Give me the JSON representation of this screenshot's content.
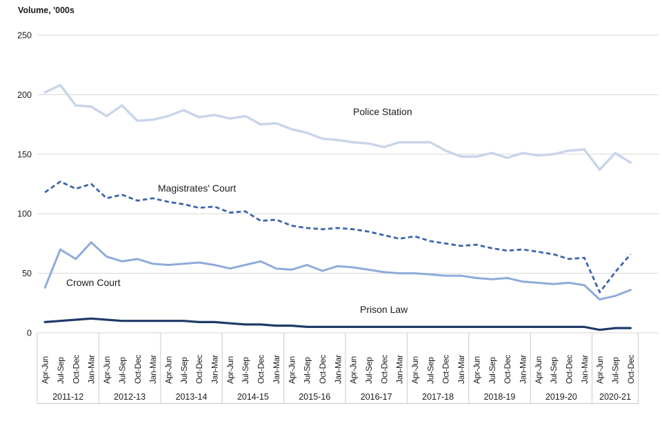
{
  "page": {
    "background": "#ffffff"
  },
  "chart_data": {
    "type": "line",
    "title": "Volume, '000s",
    "ylabel": "Volume, '000s",
    "ylim": [
      0,
      250
    ],
    "y_ticks": [
      250,
      200,
      150,
      100,
      50,
      0
    ],
    "grid": "horizontal",
    "legend": "inline-labels",
    "colors": {
      "grid": "#d6d6d6",
      "axis": "#c9c9c9",
      "text": "#1a1a1a"
    },
    "x_axis": {
      "quarter_labels": [
        "Apr-Jun",
        "Jul-Sep",
        "Oct-Dec",
        "Jan-Mar"
      ],
      "year_labels": [
        "2011-12",
        "2012-13",
        "2013-14",
        "2014-15",
        "2015-16",
        "2016-17",
        "2017-18",
        "2018-19",
        "2019-20",
        "2020-21"
      ],
      "quarters_in_last_year": 3
    },
    "series": [
      {
        "name": "Police Station",
        "line_style": "solid",
        "color": "#c8d5ea",
        "values": [
          202,
          208,
          191,
          190,
          182,
          191,
          178,
          179,
          182,
          187,
          181,
          183,
          180,
          182,
          175,
          176,
          171,
          168,
          163,
          162,
          160,
          159,
          156,
          160,
          160,
          160,
          153,
          148,
          148,
          151,
          147,
          151,
          149,
          150,
          153,
          154,
          137,
          151,
          143
        ]
      },
      {
        "name": "Magistrates' Court",
        "line_style": "dashed",
        "color": "#3b64ad",
        "values": [
          118,
          127,
          121,
          125,
          113,
          116,
          111,
          113,
          110,
          108,
          105,
          106,
          101,
          102,
          94,
          95,
          90,
          88,
          87,
          88,
          87,
          85,
          82,
          79,
          81,
          77,
          75,
          73,
          74,
          71,
          69,
          70,
          68,
          66,
          62,
          63,
          34,
          51,
          66
        ]
      },
      {
        "name": "Crown Court",
        "line_style": "solid",
        "color": "#8eaadb",
        "values": [
          38,
          70,
          62,
          76,
          64,
          60,
          62,
          58,
          57,
          58,
          59,
          57,
          54,
          57,
          60,
          54,
          53,
          57,
          52,
          56,
          55,
          53,
          51,
          50,
          50,
          49,
          48,
          48,
          46,
          45,
          46,
          43,
          42,
          41,
          42,
          40,
          28,
          31,
          36
        ]
      },
      {
        "name": "Prison Law",
        "line_style": "solid",
        "color": "#1f3a68",
        "values": [
          9,
          10,
          11,
          12,
          11,
          10,
          10,
          10,
          10,
          10,
          9,
          9,
          8,
          7,
          7,
          6,
          6,
          5,
          5,
          5,
          5,
          5,
          5,
          5,
          5,
          5,
          5,
          5,
          5,
          5,
          5,
          5,
          5,
          5,
          5,
          5,
          2.5,
          4,
          4
        ]
      }
    ]
  }
}
